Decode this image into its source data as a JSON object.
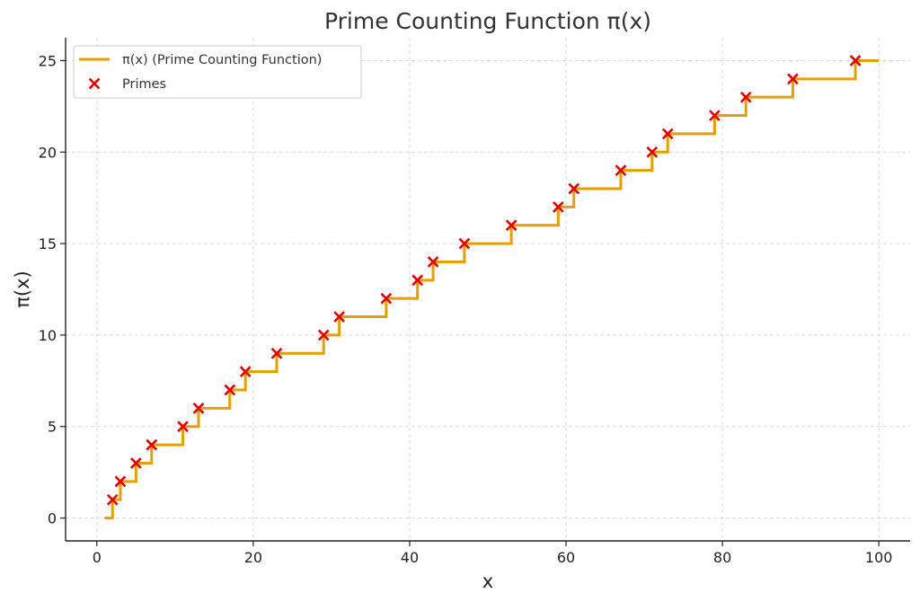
{
  "chart_data": {
    "type": "line",
    "title": "Prime Counting Function π(x)",
    "xlabel": "x",
    "ylabel": "π(x)",
    "xlim": [
      -4,
      104
    ],
    "ylim": [
      -1.25,
      26.25
    ],
    "xticks": [
      0,
      20,
      40,
      60,
      80,
      100
    ],
    "yticks": [
      0,
      5,
      10,
      15,
      20,
      25
    ],
    "grid": true,
    "legend_position": "top-left",
    "series": [
      {
        "name": "π(x) (Prime Counting Function)",
        "style": "step",
        "color": "#e69f00",
        "x_start": 1,
        "x_end": 100,
        "y_start": 0
      },
      {
        "name": "Primes",
        "style": "scatter",
        "marker": "x",
        "color": "#e60000",
        "points": [
          [
            2,
            1
          ],
          [
            3,
            2
          ],
          [
            5,
            3
          ],
          [
            7,
            4
          ],
          [
            11,
            5
          ],
          [
            13,
            6
          ],
          [
            17,
            7
          ],
          [
            19,
            8
          ],
          [
            23,
            9
          ],
          [
            29,
            10
          ],
          [
            31,
            11
          ],
          [
            37,
            12
          ],
          [
            41,
            13
          ],
          [
            43,
            14
          ],
          [
            47,
            15
          ],
          [
            53,
            16
          ],
          [
            59,
            17
          ],
          [
            61,
            18
          ],
          [
            67,
            19
          ],
          [
            71,
            20
          ],
          [
            73,
            21
          ],
          [
            79,
            22
          ],
          [
            83,
            23
          ],
          [
            89,
            24
          ],
          [
            97,
            25
          ]
        ]
      }
    ]
  }
}
